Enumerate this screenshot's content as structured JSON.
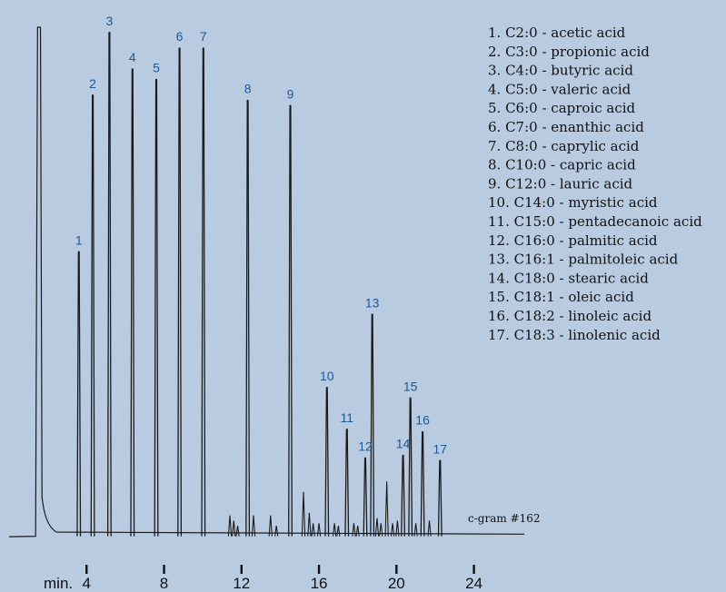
{
  "chart_data": {
    "type": "line",
    "xlabel": "min.",
    "x_ticks": [
      4,
      8,
      12,
      16,
      20,
      24
    ],
    "xlim": [
      0,
      26.6
    ],
    "ylim": [
      0,
      100
    ],
    "solvent_peak": {
      "x": 1.55,
      "y": 100
    },
    "baseline": 2.5,
    "peaks": [
      {
        "label": "1",
        "x": 3.6,
        "y": 57
      },
      {
        "label": "2",
        "x": 4.32,
        "y": 87
      },
      {
        "label": "3",
        "x": 5.18,
        "y": 99
      },
      {
        "label": "4",
        "x": 6.37,
        "y": 92
      },
      {
        "label": "5",
        "x": 7.6,
        "y": 90
      },
      {
        "label": "6",
        "x": 8.8,
        "y": 96
      },
      {
        "label": "7",
        "x": 10.03,
        "y": 96
      },
      {
        "label": "8",
        "x": 12.32,
        "y": 86
      },
      {
        "label": "9",
        "x": 14.52,
        "y": 85
      },
      {
        "label": "10",
        "x": 16.41,
        "y": 31
      },
      {
        "label": "11",
        "x": 17.44,
        "y": 23
      },
      {
        "label": "12",
        "x": 18.39,
        "y": 17.5
      },
      {
        "label": "13",
        "x": 18.75,
        "y": 45
      },
      {
        "label": "14",
        "x": 20.34,
        "y": 18
      },
      {
        "label": "15",
        "x": 20.72,
        "y": 29
      },
      {
        "label": "16",
        "x": 21.35,
        "y": 22.5
      },
      {
        "label": "17",
        "x": 22.25,
        "y": 17
      }
    ],
    "minor_peaks": [
      {
        "x": 11.4,
        "y": 6.5
      },
      {
        "x": 11.6,
        "y": 5.5
      },
      {
        "x": 11.8,
        "y": 4.5
      },
      {
        "x": 12.62,
        "y": 6.5
      },
      {
        "x": 13.5,
        "y": 6.5
      },
      {
        "x": 13.8,
        "y": 4.5
      },
      {
        "x": 15.2,
        "y": 11
      },
      {
        "x": 15.5,
        "y": 7
      },
      {
        "x": 15.7,
        "y": 5
      },
      {
        "x": 16.0,
        "y": 5
      },
      {
        "x": 16.8,
        "y": 5
      },
      {
        "x": 17.0,
        "y": 4.5
      },
      {
        "x": 17.8,
        "y": 5
      },
      {
        "x": 18.0,
        "y": 4.5
      },
      {
        "x": 19.0,
        "y": 6
      },
      {
        "x": 19.2,
        "y": 5
      },
      {
        "x": 19.5,
        "y": 13
      },
      {
        "x": 19.8,
        "y": 5
      },
      {
        "x": 20.05,
        "y": 5.5
      },
      {
        "x": 21.0,
        "y": 5
      },
      {
        "x": 21.7,
        "y": 5.5
      }
    ],
    "legend": [
      "1. C2:0 - acetic acid",
      "2. C3:0 - propionic acid",
      "3. C4:0 - butyric acid",
      "4. C5:0 - valeric acid",
      "5. C6:0 - caproic acid",
      "6. C7:0 - enanthic acid",
      "7. C8:0 - caprylic acid",
      "8. C10:0 - capric acid",
      "9. C12:0 - lauric acid",
      "10. C14:0 - myristic acid",
      "11. C15:0 - pentadecanoic acid",
      "12. C16:0 - palmitic acid",
      "13. C16:1 - palmitoleic acid",
      "14. C18:0 - stearic acid",
      "15. C18:1 - oleic acid",
      "16. C18:2 - linoleic acid",
      "17. C18:3 - linolenic acid"
    ],
    "legend_position": "top-right",
    "annotation": "c-gram #162",
    "grid": false
  },
  "colors": {
    "background": "#b8cbe1",
    "trace": "#1a1a1a",
    "peak_label": "#1a5a96",
    "text": "#111111"
  }
}
